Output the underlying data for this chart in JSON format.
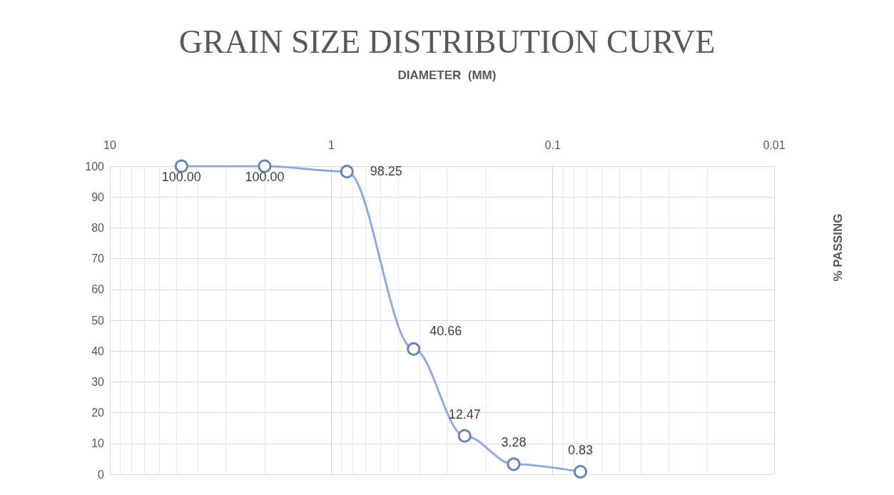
{
  "chart_data": {
    "type": "line",
    "title": "GRAIN SIZE DISTRIBUTION CURVE",
    "xlabel": "DIAMETER  (MM)",
    "ylabel": "% PASSING",
    "x": [
      4.75,
      2,
      0.85,
      0.425,
      0.25,
      0.15,
      0.075
    ],
    "series": [
      {
        "color": "#8faadc",
        "values": [
          100,
          100,
          98.25,
          40.66,
          12.47,
          3.28,
          0.83
        ],
        "value_labels": [
          "100.00",
          "100.00",
          "98.25",
          "40.66",
          "12.47",
          "3.28",
          "0.83"
        ]
      }
    ],
    "log": "x",
    "xlim": [
      10,
      0.01
    ],
    "xticks": [
      10,
      1,
      0.1,
      0.01
    ],
    "ylim": [
      0,
      100
    ],
    "yticks": [
      0,
      10,
      20,
      30,
      40,
      50,
      60,
      70,
      80,
      90,
      100
    ],
    "grid": true,
    "marker": "circle",
    "line_style": "solid"
  }
}
